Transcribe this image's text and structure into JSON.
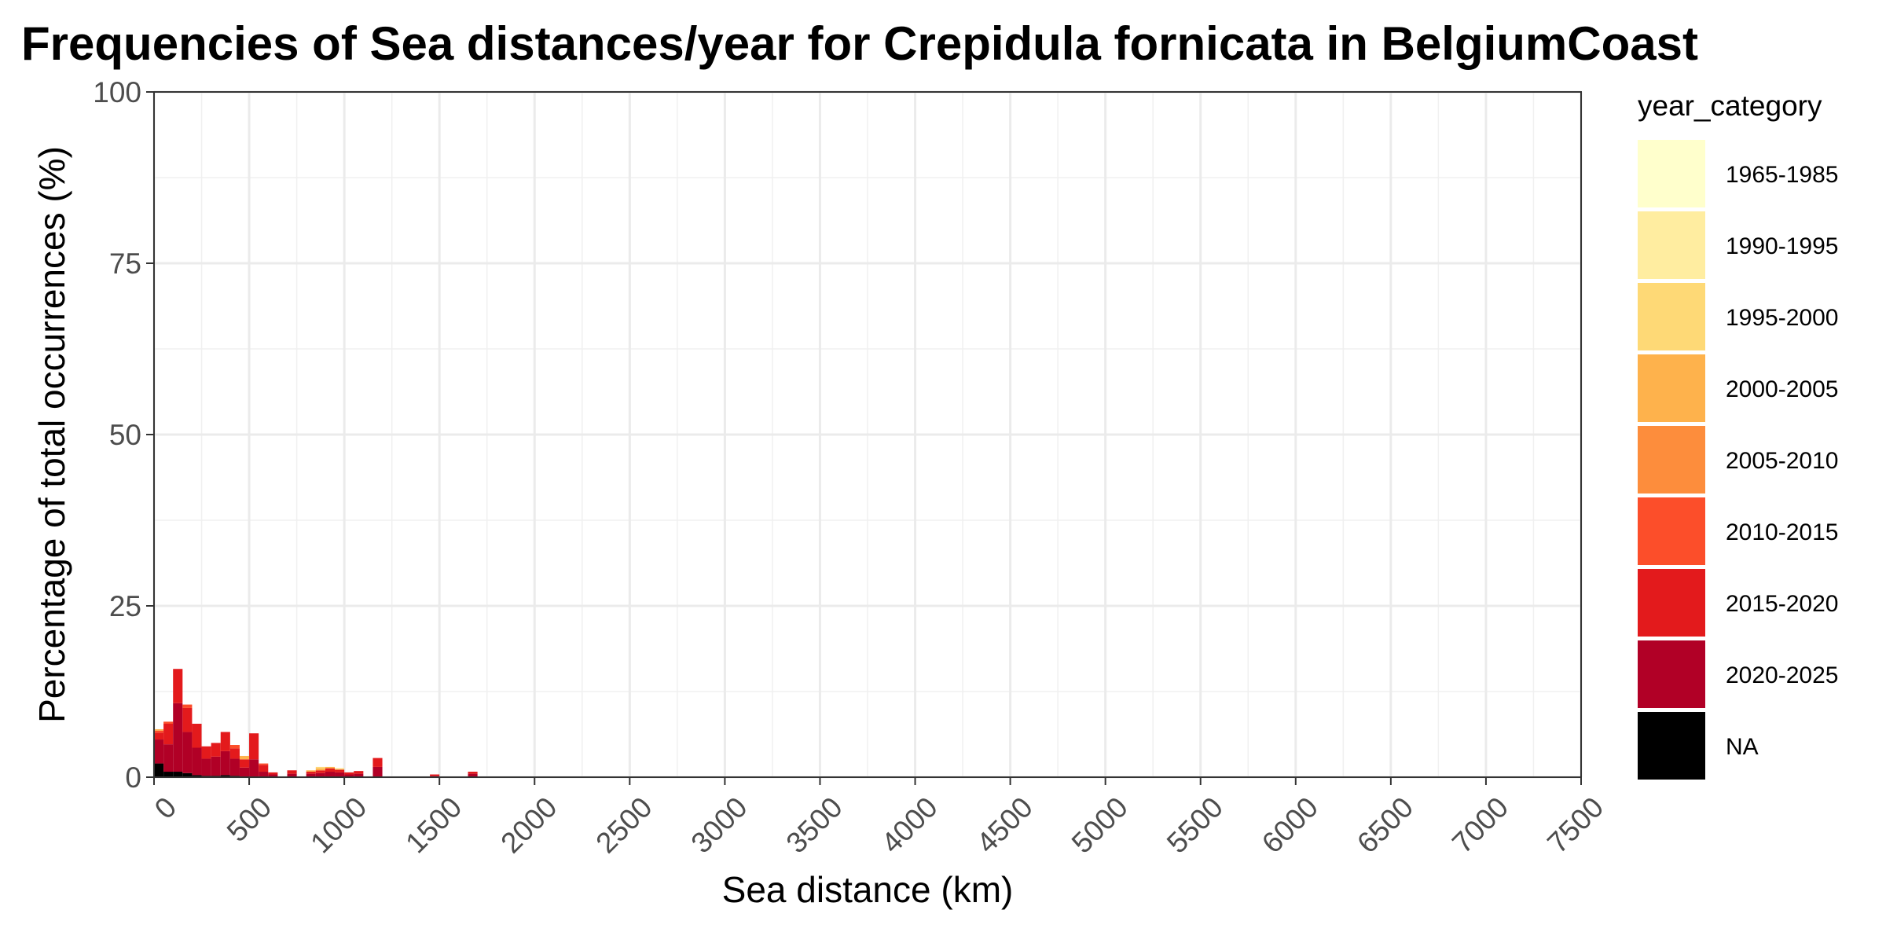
{
  "chart_data": {
    "type": "bar",
    "stacked": true,
    "title": "Frequencies of Sea distances/year for Crepidula fornicata in BelgiumCoast",
    "xlabel": "Sea distance (km)",
    "ylabel": "Percentage of total occurrences (%)",
    "xlim": [
      0,
      7500
    ],
    "ylim": [
      0,
      100
    ],
    "x_ticks": [
      0,
      500,
      1000,
      1500,
      2000,
      2500,
      3000,
      3500,
      4000,
      4500,
      5000,
      5500,
      6000,
      6500,
      7000,
      7500
    ],
    "y_ticks": [
      0,
      25,
      50,
      75,
      100
    ],
    "grid": true,
    "bin_width_km": 50,
    "legend": {
      "title": "year_category",
      "placement": "right",
      "categories": [
        "1965-1985",
        "1990-1995",
        "1995-2000",
        "2000-2005",
        "2005-2010",
        "2010-2015",
        "2015-2020",
        "2020-2025",
        "NA"
      ],
      "colors": [
        "#FFFFCC",
        "#FFEDA0",
        "#FED976",
        "#FEB24C",
        "#FD8D3C",
        "#FC4E2A",
        "#E31A1C",
        "#B10026",
        "#000000"
      ]
    },
    "bins": [
      {
        "x": 0,
        "segments": {
          "NA": 2.0,
          "2020-2025": 3.5,
          "2015-2020": 1.0,
          "2010-2015": 0.3,
          "2000-2005": 0.2
        }
      },
      {
        "x": 50,
        "segments": {
          "NA": 0.8,
          "2020-2025": 4.0,
          "2015-2020": 3.0,
          "2010-2015": 0.3
        }
      },
      {
        "x": 100,
        "segments": {
          "NA": 0.8,
          "2020-2025": 10.0,
          "2015-2020": 5.0
        }
      },
      {
        "x": 150,
        "segments": {
          "NA": 0.6,
          "2020-2025": 6.0,
          "2015-2020": 3.5,
          "2010-2015": 0.5
        }
      },
      {
        "x": 200,
        "segments": {
          "NA": 0.3,
          "2020-2025": 4.0,
          "2015-2020": 3.5
        }
      },
      {
        "x": 250,
        "segments": {
          "NA": 0.2,
          "2020-2025": 2.5,
          "2015-2020": 1.8
        }
      },
      {
        "x": 300,
        "segments": {
          "NA": 0.2,
          "2020-2025": 2.8,
          "2015-2020": 2.0
        }
      },
      {
        "x": 350,
        "segments": {
          "NA": 0.3,
          "2020-2025": 3.5,
          "2015-2020": 2.8
        }
      },
      {
        "x": 400,
        "segments": {
          "NA": 0.2,
          "2020-2025": 2.5,
          "2015-2020": 1.5,
          "2010-2015": 0.5
        }
      },
      {
        "x": 450,
        "segments": {
          "NA": 0.1,
          "2020-2025": 1.3,
          "2015-2020": 1.2,
          "2000-2005": 0.5
        }
      },
      {
        "x": 500,
        "segments": {
          "NA": 0.1,
          "2020-2025": 2.5,
          "2015-2020": 3.8
        }
      },
      {
        "x": 550,
        "segments": {
          "2020-2025": 0.8,
          "2015-2020": 1.0,
          "2010-2015": 0.2
        }
      },
      {
        "x": 600,
        "segments": {
          "2020-2025": 0.4,
          "2015-2020": 0.3
        }
      },
      {
        "x": 700,
        "segments": {
          "2020-2025": 0.5,
          "2015-2020": 0.5
        }
      },
      {
        "x": 800,
        "segments": {
          "2020-2025": 0.5,
          "2015-2020": 0.3,
          "2000-2005": 0.2
        }
      },
      {
        "x": 850,
        "segments": {
          "2020-2025": 0.6,
          "2015-2020": 0.4,
          "2000-2005": 0.3,
          "1995-2000": 0.2
        }
      },
      {
        "x": 900,
        "segments": {
          "2020-2025": 0.8,
          "2015-2020": 0.5,
          "2000-2005": 0.2
        }
      },
      {
        "x": 950,
        "segments": {
          "2020-2025": 0.7,
          "2015-2020": 0.4,
          "1995-2000": 0.2
        }
      },
      {
        "x": 1000,
        "segments": {
          "2020-2025": 0.4,
          "2015-2020": 0.3
        }
      },
      {
        "x": 1050,
        "segments": {
          "2020-2025": 0.5,
          "2015-2020": 0.4
        }
      },
      {
        "x": 1150,
        "segments": {
          "2020-2025": 1.5,
          "2015-2020": 1.3
        }
      },
      {
        "x": 1450,
        "segments": {
          "2020-2025": 0.2,
          "2015-2020": 0.2
        }
      },
      {
        "x": 1650,
        "segments": {
          "2020-2025": 0.5,
          "2015-2020": 0.3
        }
      }
    ]
  }
}
